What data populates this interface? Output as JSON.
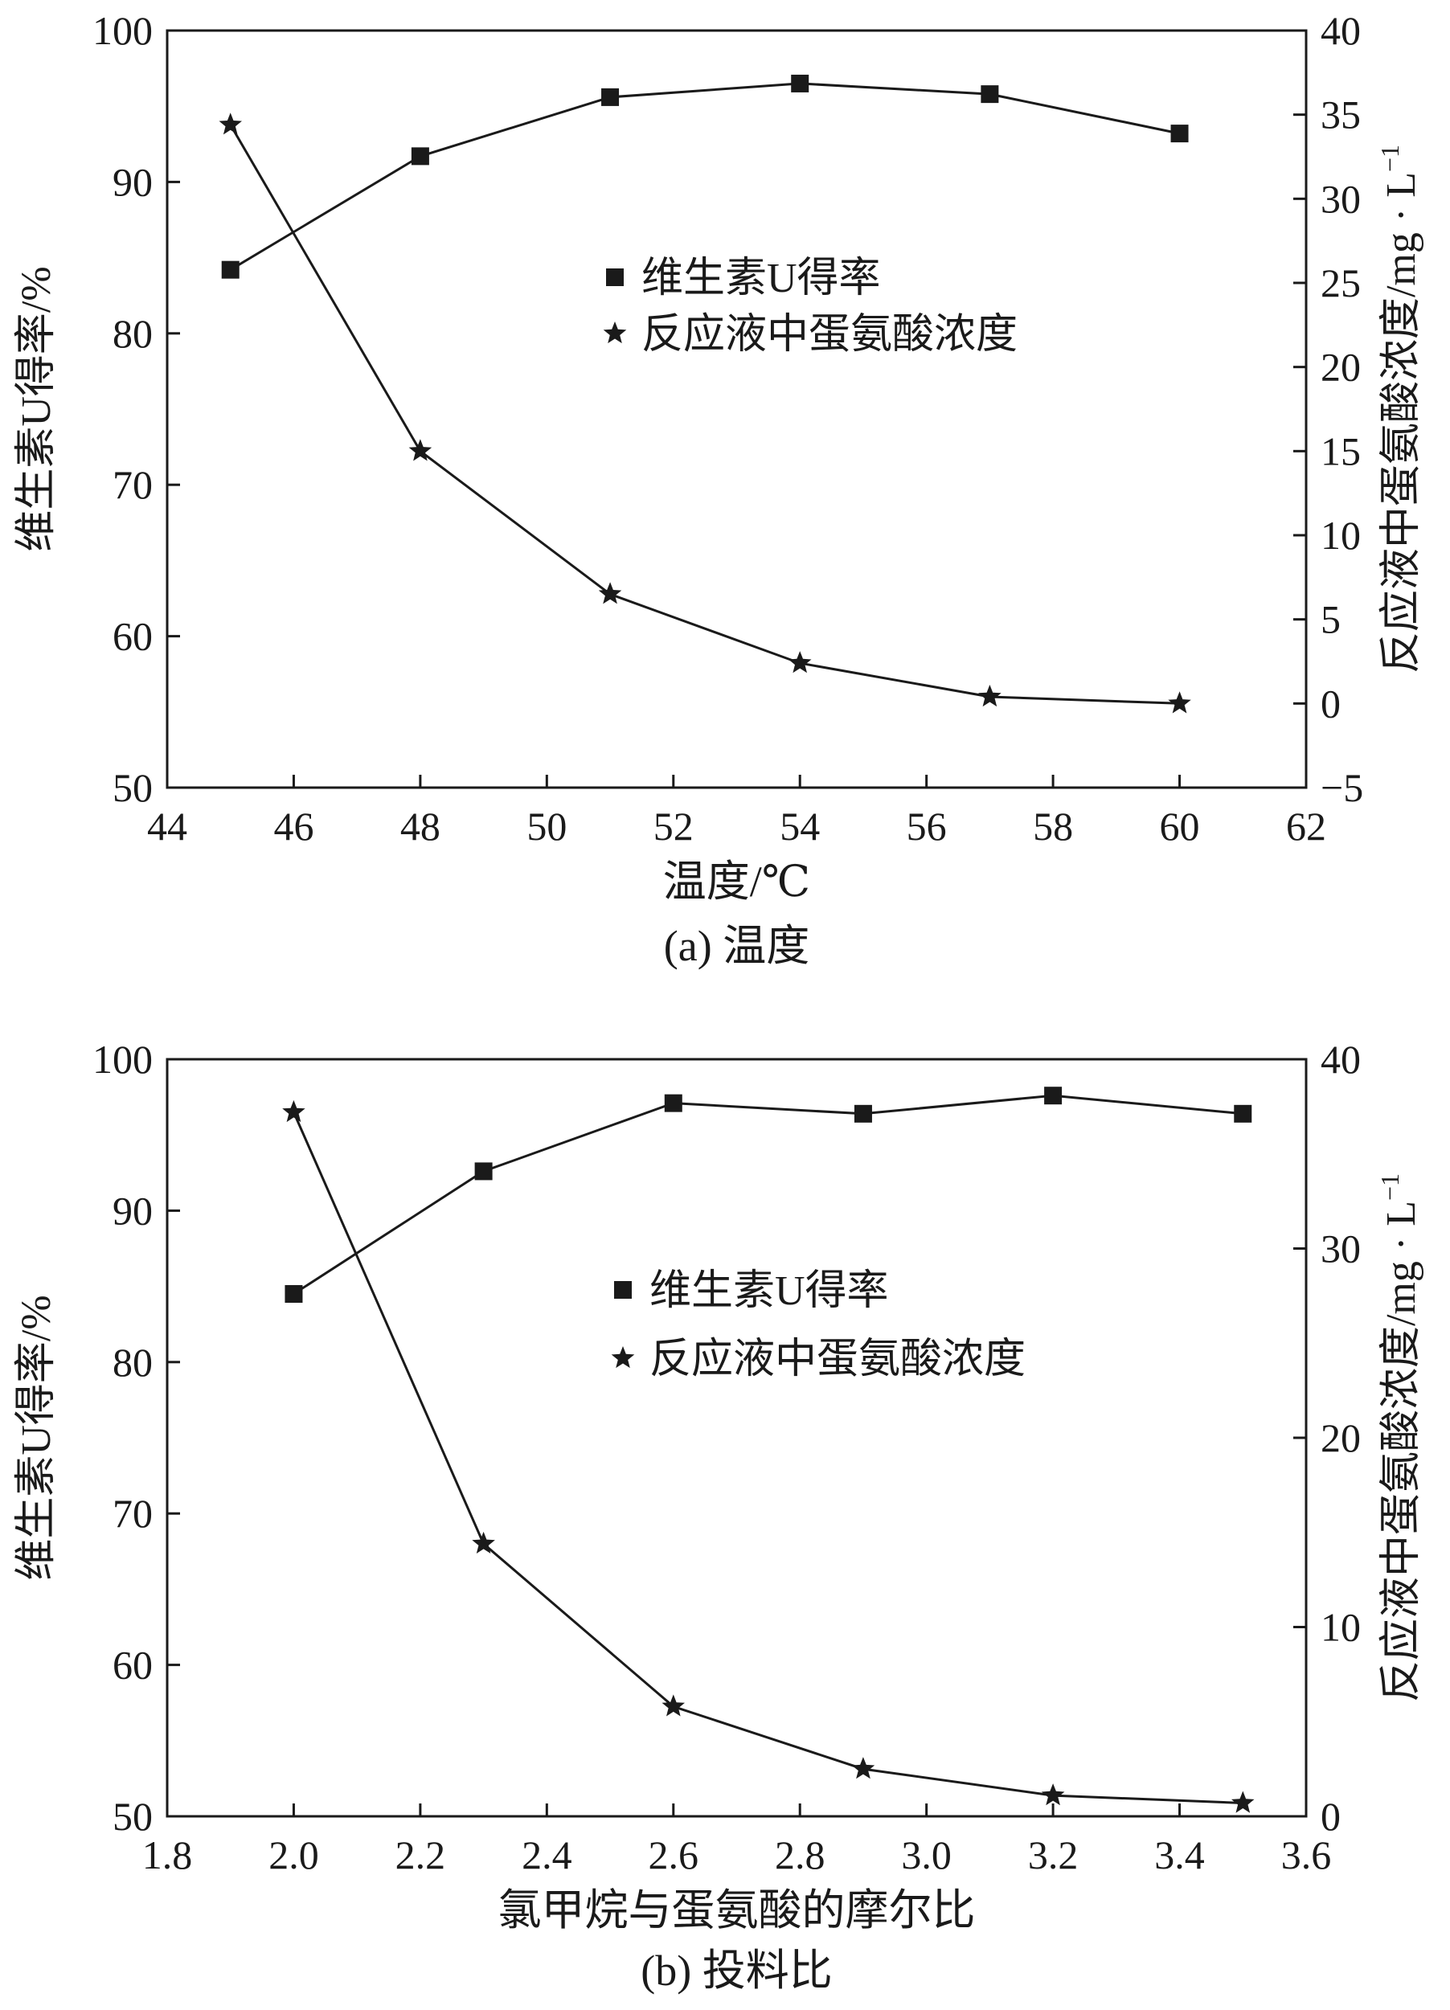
{
  "chart_data": [
    {
      "type": "line",
      "caption": "(a) 温度",
      "xlabel": "温度/℃",
      "ylabel_left": "维生素U得率/%",
      "ylabel_right_main": "反应液中蛋氨酸浓度/mg · L",
      "ylabel_right_sup": "−1",
      "xlim": [
        44,
        62
      ],
      "xticks": [
        44,
        46,
        48,
        50,
        52,
        54,
        56,
        58,
        60,
        62
      ],
      "ylim_left": [
        50,
        100
      ],
      "yticks_left": [
        50,
        60,
        70,
        80,
        90,
        100
      ],
      "ylim_right": [
        -5,
        40
      ],
      "yticks_right": [
        -5,
        0,
        5,
        10,
        15,
        20,
        25,
        30,
        35,
        40
      ],
      "yticks_right_labels": [
        "−5",
        "0",
        "5",
        "10",
        "15",
        "20",
        "25",
        "30",
        "35",
        "40"
      ],
      "grid": false,
      "legend_position": "center",
      "series": [
        {
          "name": "维生素U得率",
          "marker": "square",
          "axis": "left",
          "x": [
            45,
            48,
            51,
            54,
            57,
            60
          ],
          "values": [
            84.2,
            91.7,
            95.6,
            96.5,
            95.8,
            93.2
          ]
        },
        {
          "name": "反应液中蛋氨酸浓度",
          "marker": "star",
          "axis": "right",
          "x": [
            45,
            48,
            51,
            54,
            57,
            60
          ],
          "values": [
            34.4,
            15.0,
            6.5,
            2.4,
            0.4,
            0.0
          ]
        }
      ]
    },
    {
      "type": "line",
      "caption": "(b) 投料比",
      "xlabel": "氯甲烷与蛋氨酸的摩尔比",
      "ylabel_left": "维生素U得率/%",
      "ylabel_right_main": "反应液中蛋氨酸浓度/mg · L",
      "ylabel_right_sup": "−1",
      "xlim": [
        1.8,
        3.6
      ],
      "xticks": [
        1.8,
        2.0,
        2.2,
        2.4,
        2.6,
        2.8,
        3.0,
        3.2,
        3.4,
        3.6
      ],
      "xticks_labels": [
        "1.8",
        "2.0",
        "2.2",
        "2.4",
        "2.6",
        "2.8",
        "3.0",
        "3.2",
        "3.4",
        "3.6"
      ],
      "ylim_left": [
        50,
        100
      ],
      "yticks_left": [
        50,
        60,
        70,
        80,
        90,
        100
      ],
      "ylim_right": [
        0,
        40
      ],
      "yticks_right": [
        0,
        10,
        20,
        30,
        40
      ],
      "grid": false,
      "legend_position": "center",
      "series": [
        {
          "name": "维生素U得率",
          "marker": "square",
          "axis": "left",
          "x": [
            2.0,
            2.3,
            2.6,
            2.9,
            3.2,
            3.5
          ],
          "values": [
            84.5,
            92.6,
            97.1,
            96.4,
            97.6,
            96.4
          ]
        },
        {
          "name": "反应液中蛋氨酸浓度",
          "marker": "star",
          "axis": "right",
          "x": [
            2.0,
            2.3,
            2.6,
            2.9,
            3.2,
            3.5
          ],
          "values": [
            37.2,
            14.4,
            5.8,
            2.5,
            1.1,
            0.7
          ]
        }
      ]
    }
  ]
}
